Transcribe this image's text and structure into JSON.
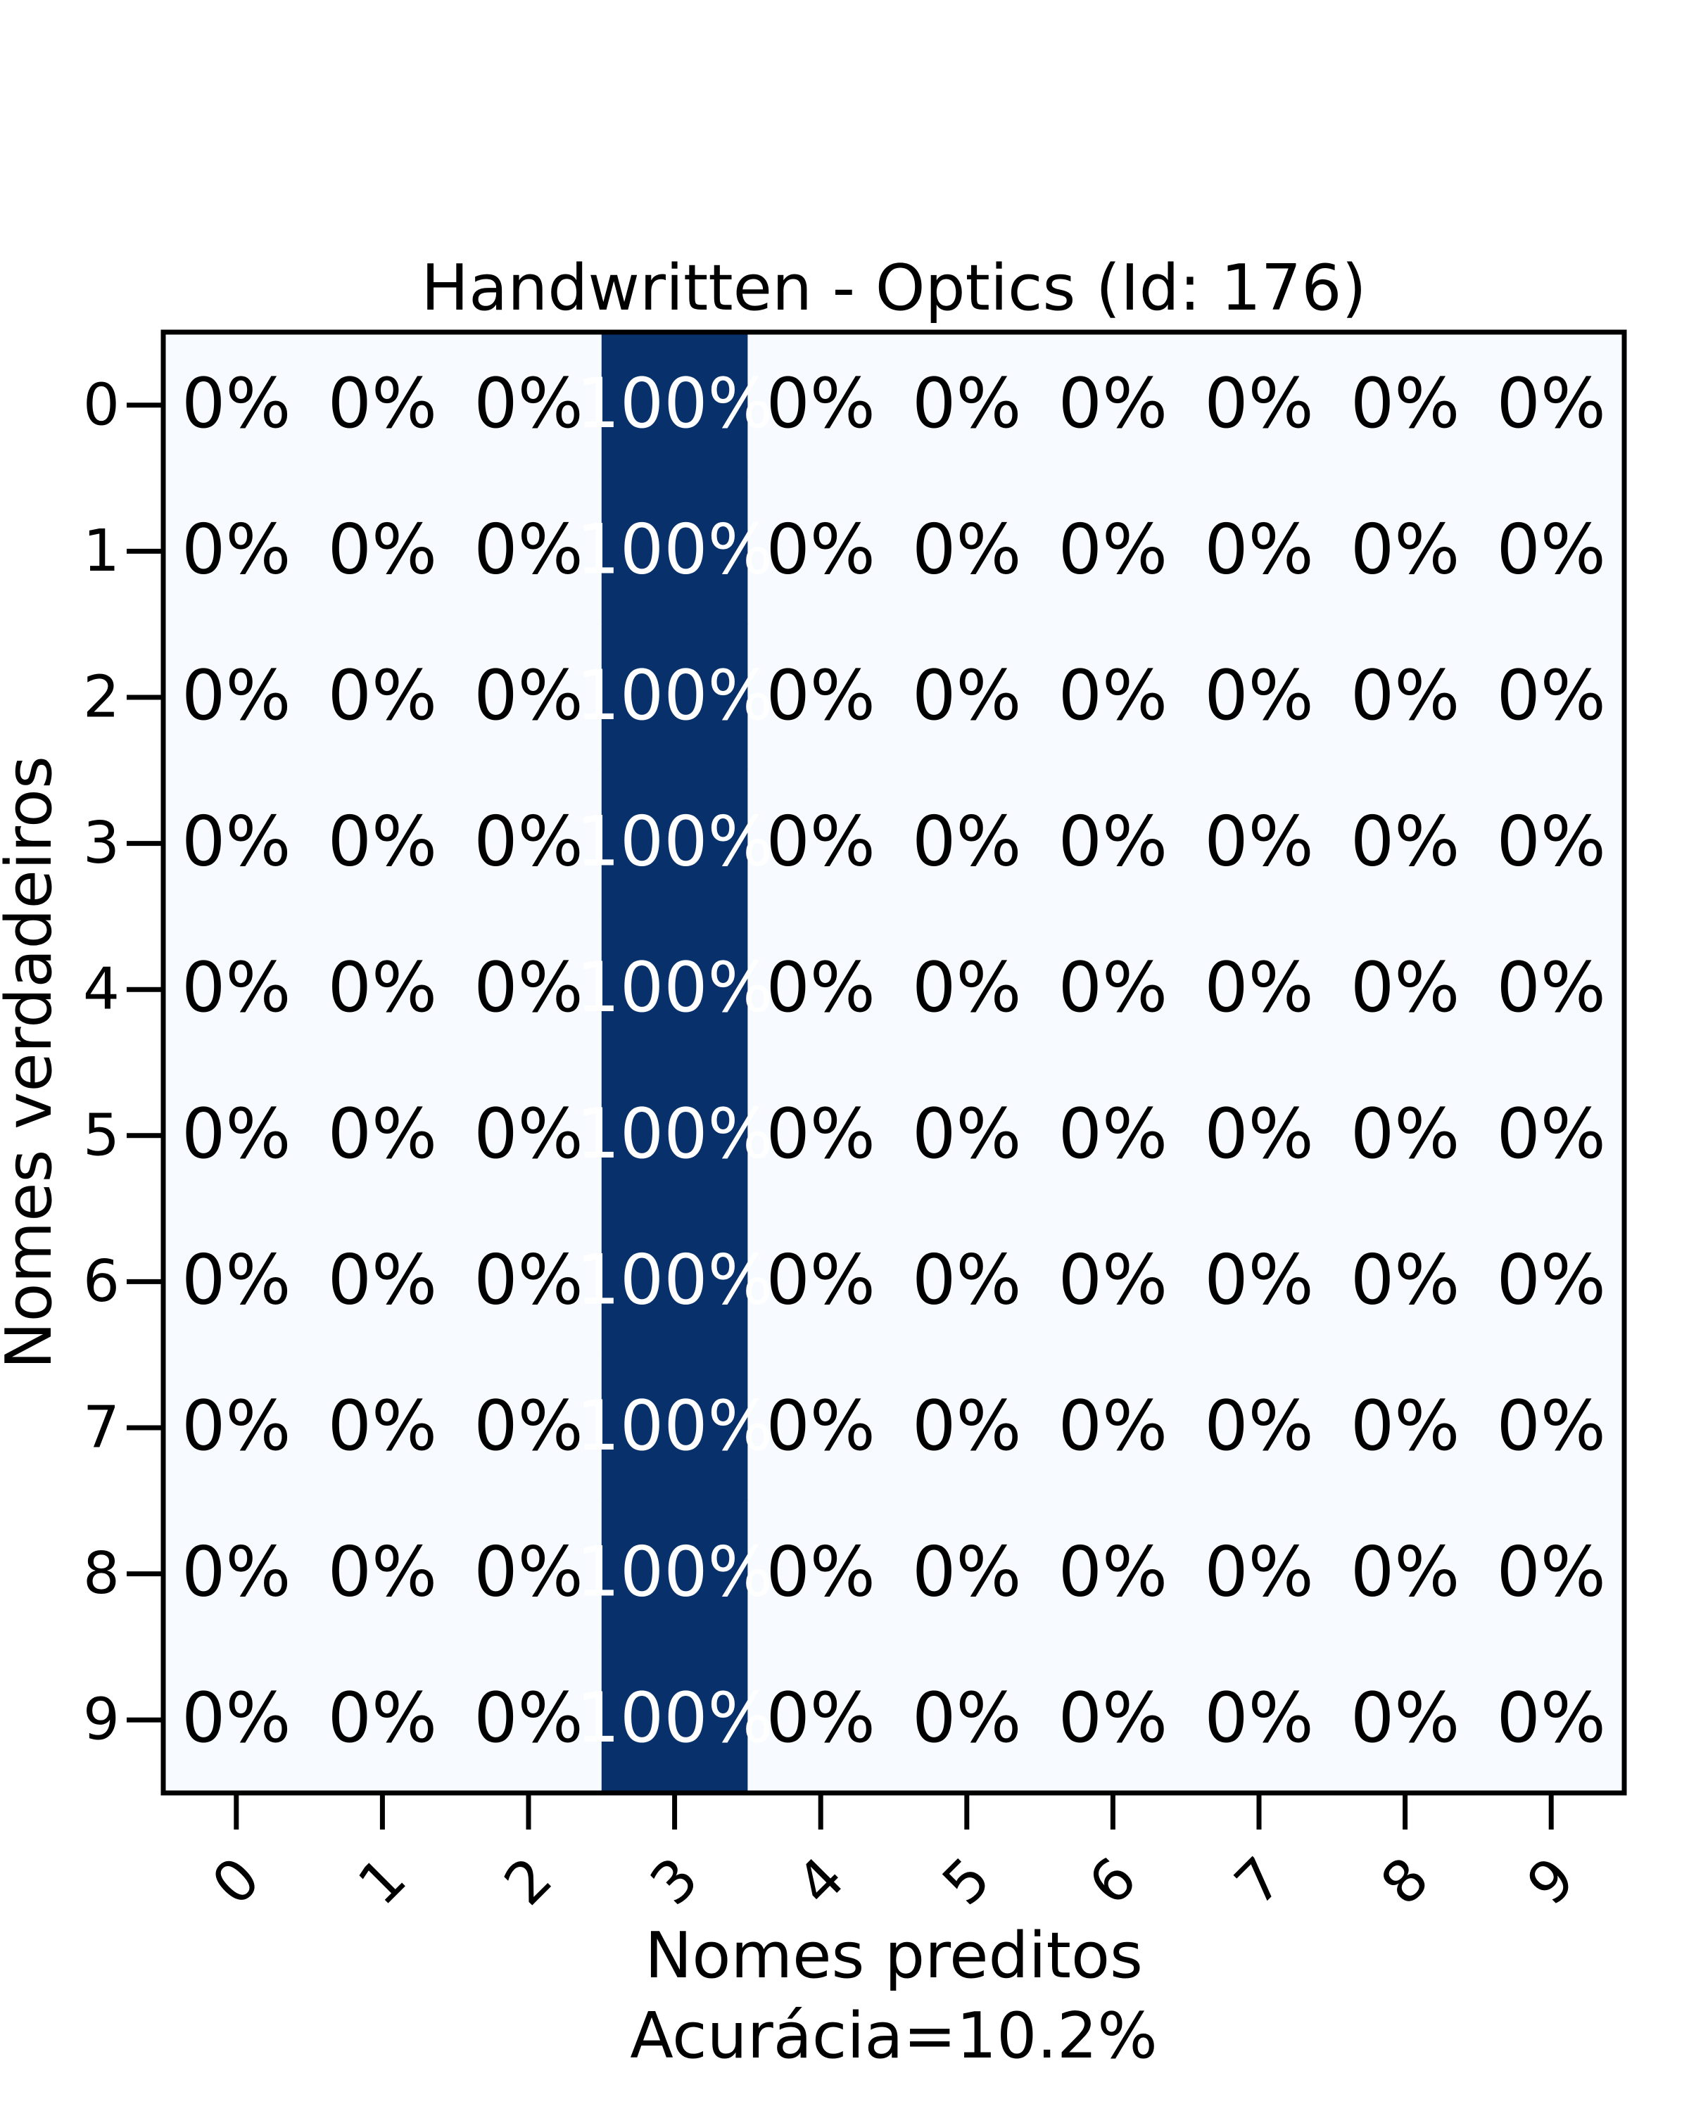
{
  "chart_data": {
    "type": "heatmap",
    "title": "Handwritten - Optics (Id: 176)",
    "xlabel": "Nomes preditos",
    "xlabel_sub": "Acurácia=10.2%",
    "ylabel": "Nomes verdadeiros",
    "x_categories": [
      "0",
      "1",
      "2",
      "3",
      "4",
      "5",
      "6",
      "7",
      "8",
      "9"
    ],
    "y_categories": [
      "0",
      "1",
      "2",
      "3",
      "4",
      "5",
      "6",
      "7",
      "8",
      "9"
    ],
    "colormap": "Blues",
    "colors": {
      "low": "#f7fbff",
      "high": "#08306b"
    },
    "values": [
      [
        0,
        0,
        0,
        1,
        0,
        0,
        0,
        0,
        0,
        0
      ],
      [
        0,
        0,
        0,
        1,
        0,
        0,
        0,
        0,
        0,
        0
      ],
      [
        0,
        0,
        0,
        1,
        0,
        0,
        0,
        0,
        0,
        0
      ],
      [
        0,
        0,
        0,
        1,
        0,
        0,
        0,
        0,
        0,
        0
      ],
      [
        0,
        0,
        0,
        1,
        0,
        0,
        0,
        0,
        0,
        0
      ],
      [
        0,
        0,
        0,
        1,
        0,
        0,
        0,
        0,
        0,
        0
      ],
      [
        0,
        0,
        0,
        1,
        0,
        0,
        0,
        0,
        0,
        0
      ],
      [
        0,
        0,
        0,
        1,
        0,
        0,
        0,
        0,
        0,
        0
      ],
      [
        0,
        0,
        0,
        1,
        0,
        0,
        0,
        0,
        0,
        0
      ],
      [
        0,
        0,
        0,
        1,
        0,
        0,
        0,
        0,
        0,
        0
      ]
    ],
    "cell_labels": [
      [
        "0%",
        "0%",
        "0%",
        "100%",
        "0%",
        "0%",
        "0%",
        "0%",
        "0%",
        "0%"
      ],
      [
        "0%",
        "0%",
        "0%",
        "100%",
        "0%",
        "0%",
        "0%",
        "0%",
        "0%",
        "0%"
      ],
      [
        "0%",
        "0%",
        "0%",
        "100%",
        "0%",
        "0%",
        "0%",
        "0%",
        "0%",
        "0%"
      ],
      [
        "0%",
        "0%",
        "0%",
        "100%",
        "0%",
        "0%",
        "0%",
        "0%",
        "0%",
        "0%"
      ],
      [
        "0%",
        "0%",
        "0%",
        "100%",
        "0%",
        "0%",
        "0%",
        "0%",
        "0%",
        "0%"
      ],
      [
        "0%",
        "0%",
        "0%",
        "100%",
        "0%",
        "0%",
        "0%",
        "0%",
        "0%",
        "0%"
      ],
      [
        "0%",
        "0%",
        "0%",
        "100%",
        "0%",
        "0%",
        "0%",
        "0%",
        "0%",
        "0%"
      ],
      [
        "0%",
        "0%",
        "0%",
        "100%",
        "0%",
        "0%",
        "0%",
        "0%",
        "0%",
        "0%"
      ],
      [
        "0%",
        "0%",
        "0%",
        "100%",
        "0%",
        "0%",
        "0%",
        "0%",
        "0%",
        "0%"
      ],
      [
        "0%",
        "0%",
        "0%",
        "100%",
        "0%",
        "0%",
        "0%",
        "0%",
        "0%",
        "0%"
      ]
    ]
  }
}
